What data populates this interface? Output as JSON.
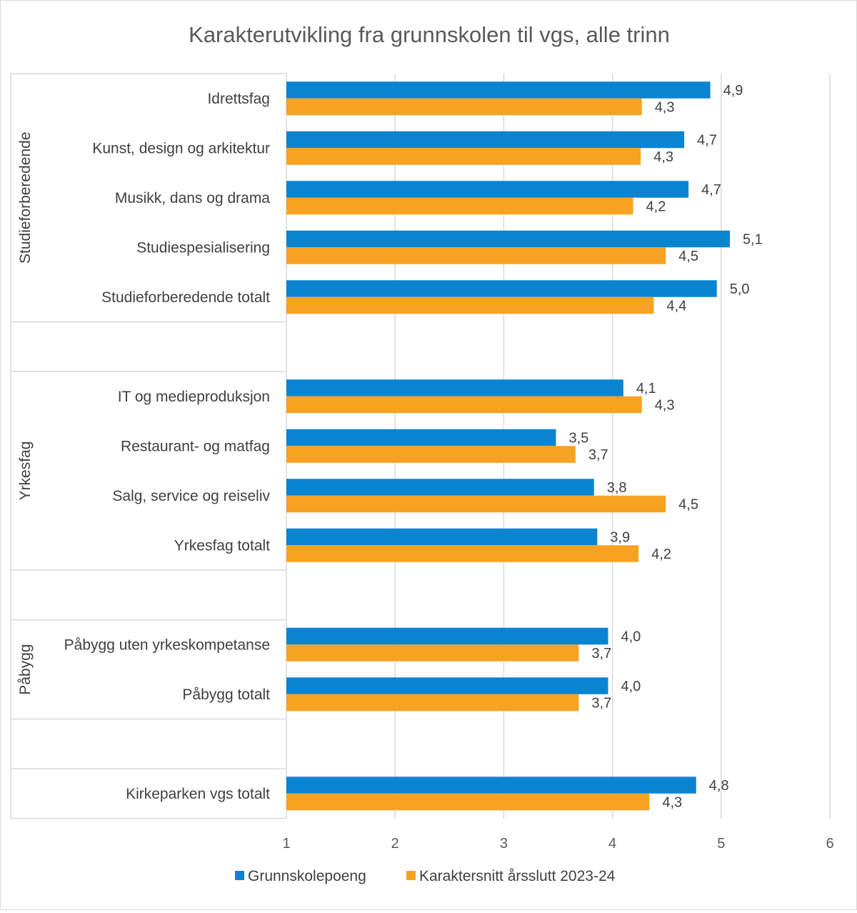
{
  "chart_data": {
    "type": "bar",
    "orientation": "horizontal",
    "title": "Karakterutvikling fra grunnskolen til vgs, alle trinn",
    "xlim": [
      1,
      6
    ],
    "x_ticks": [
      "1",
      "2",
      "3",
      "4",
      "5",
      "6"
    ],
    "grid": true,
    "legend_position": "bottom",
    "series": [
      {
        "name": "Grunnskolepoeng",
        "color": "#0a84d0"
      },
      {
        "name": "Karaktersnitt årsslutt 2023-24",
        "color": "#f8a221"
      }
    ],
    "groups": [
      {
        "label": "Studieforberedende",
        "categories": [
          {
            "label": "Idrettsfag",
            "values": [
              4.9,
              4.27
            ],
            "data_labels": [
              "4,9",
              "4,3"
            ]
          },
          {
            "label": "Kunst, design og arkitektur",
            "values": [
              4.66,
              4.26
            ],
            "data_labels": [
              "4,7",
              "4,3"
            ]
          },
          {
            "label": "Musikk, dans og drama",
            "values": [
              4.7,
              4.19
            ],
            "data_labels": [
              "4,7",
              "4,2"
            ]
          },
          {
            "label": "Studiespesialisering",
            "values": [
              5.08,
              4.49
            ],
            "data_labels": [
              "5,1",
              "4,5"
            ]
          },
          {
            "label": "Studieforberedende totalt",
            "values": [
              4.96,
              4.38
            ],
            "data_labels": [
              "5,0",
              "4,4"
            ]
          }
        ]
      },
      {
        "label": "Yrkesfag",
        "categories": [
          {
            "label": "IT og medieproduksjon",
            "values": [
              4.1,
              4.27
            ],
            "data_labels": [
              "4,1",
              "4,3"
            ]
          },
          {
            "label": "Restaurant- og matfag",
            "values": [
              3.48,
              3.66
            ],
            "data_labels": [
              "3,5",
              "3,7"
            ]
          },
          {
            "label": "Salg, service og reiseliv",
            "values": [
              3.83,
              4.49
            ],
            "data_labels": [
              "3,8",
              "4,5"
            ]
          },
          {
            "label": "Yrkesfag totalt",
            "values": [
              3.86,
              4.24
            ],
            "data_labels": [
              "3,9",
              "4,2"
            ]
          }
        ]
      },
      {
        "label": "Påbygg",
        "categories": [
          {
            "label": "Påbygg uten yrkeskompetanse",
            "values": [
              3.96,
              3.69
            ],
            "data_labels": [
              "4,0",
              "3,7"
            ]
          },
          {
            "label": "Påbygg totalt",
            "values": [
              3.96,
              3.69
            ],
            "data_labels": [
              "4,0",
              "3,7"
            ]
          }
        ]
      },
      {
        "label": "",
        "categories": [
          {
            "label": "Kirkeparken vgs totalt",
            "values": [
              4.77,
              4.34
            ],
            "data_labels": [
              "4,8",
              "4,3"
            ]
          }
        ]
      }
    ]
  }
}
